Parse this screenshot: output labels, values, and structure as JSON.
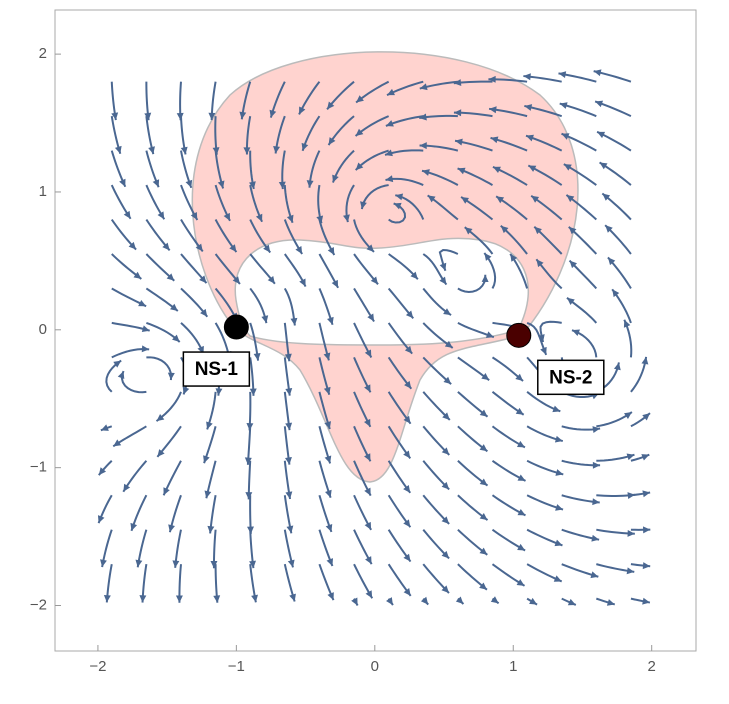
{
  "chart_data": {
    "type": "streamplot",
    "xlim": [
      -2.31,
      2.32
    ],
    "ylim": [
      -2.33,
      2.32
    ],
    "xticks": [
      {
        "value": -2,
        "label": "−2"
      },
      {
        "value": -1,
        "label": "−1"
      },
      0,
      1,
      2
    ],
    "yticks": [
      {
        "value": -2,
        "label": "−2"
      },
      {
        "value": -1,
        "label": "−1"
      },
      0,
      1,
      2
    ],
    "color": "#4a6791",
    "points": [
      {
        "label": "NS-1",
        "x": -1.0,
        "y": 0.02
      },
      {
        "label": "NS-2",
        "x": 1.04,
        "y": -0.04
      }
    ]
  }
}
